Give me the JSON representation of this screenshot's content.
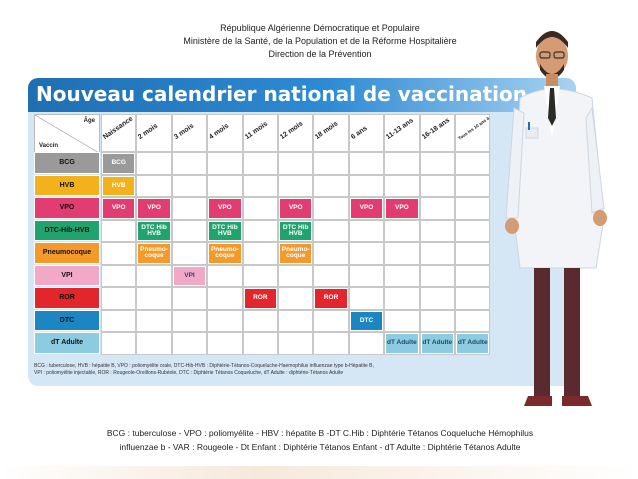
{
  "header": {
    "line1": "République Algérienne Démocratique et Populaire",
    "line2": "Ministère de la Santé, de la Population et de la Réforme Hospitalière",
    "line3": "Direction de la Prévention"
  },
  "poster": {
    "title": "Nouveau calendrier national de vaccination",
    "corner_age": "Âge",
    "corner_vaccine": "Vaccin",
    "columns": [
      "Naissance",
      "2 mois",
      "3 mois",
      "4 mois",
      "11 mois",
      "12 mois",
      "18 mois",
      "6 ans",
      "11-13 ans",
      "16-18 ans",
      "Tous les 10 ans à partir de 18 ans"
    ],
    "rows": [
      {
        "label": "BCG",
        "color": "#9a9a9a",
        "marks": [
          {
            "col": 0,
            "text": "BCG"
          }
        ]
      },
      {
        "label": "HVB",
        "color": "#f3b21c",
        "marks": [
          {
            "col": 0,
            "text": "HVB"
          }
        ]
      },
      {
        "label": "VPO",
        "color": "#e23d72",
        "marks": [
          {
            "col": 0,
            "text": "VPO"
          },
          {
            "col": 1,
            "text": "VPO"
          },
          {
            "col": 3,
            "text": "VPO"
          },
          {
            "col": 5,
            "text": "VPO"
          },
          {
            "col": 7,
            "text": "VPO"
          },
          {
            "col": 8,
            "text": "VPO"
          }
        ]
      },
      {
        "label": "DTC-Hib-HVB",
        "color": "#1fa46d",
        "marks": [
          {
            "col": 1,
            "text": "DTC Hib HVB"
          },
          {
            "col": 3,
            "text": "DTC Hib HVB"
          },
          {
            "col": 5,
            "text": "DTC Hib HVB"
          }
        ]
      },
      {
        "label": "Pneumocoque",
        "color": "#f39a2a",
        "marks": [
          {
            "col": 1,
            "text": "Pneumo-coque"
          },
          {
            "col": 3,
            "text": "Pneumo-coque"
          },
          {
            "col": 5,
            "text": "Pneumo-coque"
          }
        ]
      },
      {
        "label": "VPI",
        "color": "#f2a9c8",
        "marks": [
          {
            "col": 2,
            "text": "VPI"
          }
        ]
      },
      {
        "label": "ROR",
        "color": "#e2262b",
        "marks": [
          {
            "col": 4,
            "text": "ROR"
          },
          {
            "col": 6,
            "text": "ROR"
          }
        ]
      },
      {
        "label": "DTC",
        "color": "#1c86c2",
        "marks": [
          {
            "col": 7,
            "text": "DTC"
          }
        ]
      },
      {
        "label": "dT Adulte",
        "color": "#8ccbe0",
        "marks": [
          {
            "col": 8,
            "text": "dT Adulte"
          },
          {
            "col": 9,
            "text": "dT Adulte"
          },
          {
            "col": 10,
            "text": "dT Adulte"
          }
        ]
      }
    ],
    "legend_line1": "BCG : tuberculose, HVB : hépatite B, VPO : poliomyélite orale, DTC-Hib-HVB : Diphtérie-Tétanos-Coqueluche-Haemophilus influenzae type b-Hépatite B,",
    "legend_line2": "VPI : poliomyélite injectable, ROR : Rougeole-Oreillons-Rubéole, DTC : Diphtérie Tétanos Coqueluche, dT Adulte : diphtérie-Tétanos Adulte"
  },
  "footer": {
    "line1": "BCG : tuberculose - VPO : poliomyélite - HBV : hépatite B -DT C.Hib : Diphtérie Tétanos Coqueluche Hémophilus",
    "line2": "influenzae b - VAR : Rougeole - Dt Enfant : Diphtérie Tétanos Enfant - dT Adulte : Diphtérie Tétanos Adulte"
  },
  "illustration": {
    "icon": "doctor-illustration"
  }
}
